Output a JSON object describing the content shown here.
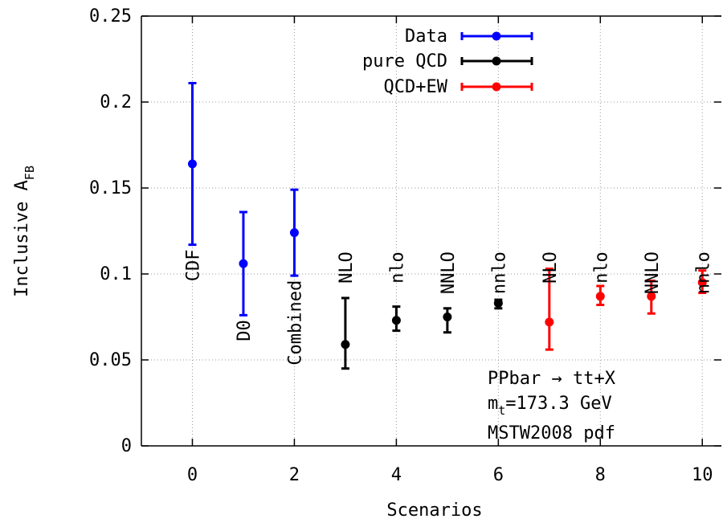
{
  "chart_data": {
    "type": "scatter",
    "xlabel": "Scenarios",
    "ylabel": {
      "main": "Inclusive A",
      "sub": "FB"
    },
    "xlim": [
      -1,
      10.5
    ],
    "ylim": [
      0,
      0.25
    ],
    "x_ticks": [
      0,
      2,
      4,
      6,
      8,
      10
    ],
    "x_tick_labels": [
      "0",
      "2",
      "4",
      "6",
      "8",
      "10"
    ],
    "y_ticks": [
      0,
      0.05,
      0.1,
      0.15,
      0.2,
      0.25
    ],
    "y_tick_labels": [
      "0",
      "0.05",
      "0.1",
      "0.15",
      "0.2",
      "0.25"
    ],
    "grid": true,
    "legend_position": "top-right",
    "series": [
      {
        "name": "Data",
        "color": "#0000ff",
        "points": [
          {
            "x": 0,
            "y": 0.164,
            "ylow": 0.117,
            "yhigh": 0.211,
            "label": "CDF"
          },
          {
            "x": 1,
            "y": 0.106,
            "ylow": 0.076,
            "yhigh": 0.136,
            "label": "D0"
          },
          {
            "x": 2,
            "y": 0.124,
            "ylow": 0.099,
            "yhigh": 0.149,
            "label": "Combined"
          }
        ]
      },
      {
        "name": "pure QCD",
        "color": "#000000",
        "points": [
          {
            "x": 3,
            "y": 0.059,
            "ylow": 0.045,
            "yhigh": 0.086,
            "label": "NLO"
          },
          {
            "x": 4,
            "y": 0.073,
            "ylow": 0.067,
            "yhigh": 0.081,
            "label": "nlo"
          },
          {
            "x": 5,
            "y": 0.075,
            "ylow": 0.066,
            "yhigh": 0.08,
            "label": "NNLO"
          },
          {
            "x": 6,
            "y": 0.083,
            "ylow": 0.08,
            "yhigh": 0.085,
            "label": "nnlo"
          }
        ]
      },
      {
        "name": "QCD+EW",
        "color": "#ff0000",
        "points": [
          {
            "x": 7,
            "y": 0.072,
            "ylow": 0.056,
            "yhigh": 0.103,
            "label": "NLO"
          },
          {
            "x": 8,
            "y": 0.087,
            "ylow": 0.082,
            "yhigh": 0.093,
            "label": "nlo"
          },
          {
            "x": 9,
            "y": 0.087,
            "ylow": 0.077,
            "yhigh": 0.096,
            "label": "NNLO"
          },
          {
            "x": 10,
            "y": 0.095,
            "ylow": 0.089,
            "yhigh": 0.102,
            "label": "nnlo"
          }
        ]
      }
    ],
    "annotations": {
      "process": "PPbar → tt+X",
      "mass_prefix": "m",
      "mass_sub": "t",
      "mass_value": "=173.3 GeV",
      "pdf": "MSTW2008 pdf"
    }
  }
}
